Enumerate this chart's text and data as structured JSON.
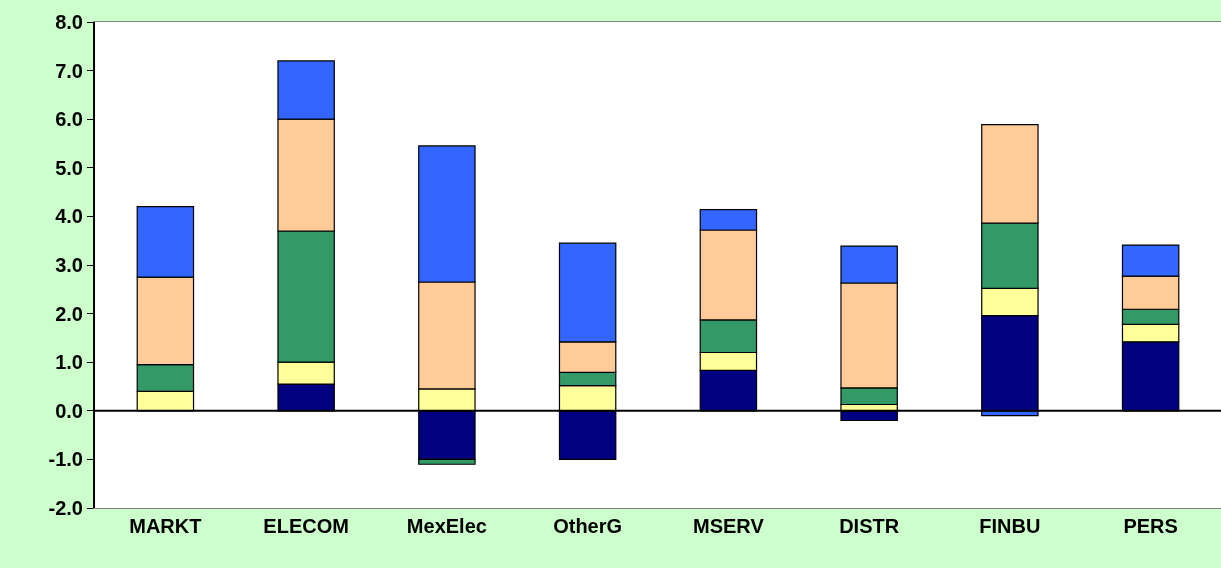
{
  "chart_data": {
    "type": "bar",
    "stacked": true,
    "categories": [
      "MARKT",
      "ELECOM",
      "MexElec",
      "OtherG",
      "MSERV",
      "DISTR",
      "FINBU",
      "PERS"
    ],
    "series": [
      {
        "color": "#000080",
        "values": [
          null,
          0.55,
          -1.0,
          -1.0,
          0.83,
          -0.2,
          1.96,
          1.42
        ]
      },
      {
        "color": "#ffff99",
        "values": [
          0.4,
          0.45,
          0.45,
          0.52,
          0.37,
          0.13,
          0.56,
          0.36
        ]
      },
      {
        "color": "#339966",
        "values": [
          0.55,
          2.7,
          -0.1,
          0.27,
          0.67,
          0.34,
          1.34,
          0.31
        ]
      },
      {
        "color": "#ffcc99",
        "values": [
          1.8,
          2.3,
          2.2,
          0.63,
          1.85,
          2.16,
          2.03,
          0.68
        ]
      },
      {
        "color": "#3366ff",
        "values": [
          1.45,
          1.2,
          2.8,
          2.03,
          0.42,
          0.76,
          -0.1,
          0.64
        ]
      }
    ],
    "ylim": [
      -2,
      8
    ],
    "yticks": [
      {
        "value": -2,
        "label": "-2.0"
      },
      {
        "value": -1,
        "label": "-1.0"
      },
      {
        "value": 0,
        "label": "0.0"
      },
      {
        "value": 1,
        "label": "1.0"
      },
      {
        "value": 2,
        "label": "2.0"
      },
      {
        "value": 3,
        "label": "3.0"
      },
      {
        "value": 4,
        "label": "4.0"
      },
      {
        "value": 5,
        "label": "5.0"
      },
      {
        "value": 6,
        "label": "6.0"
      },
      {
        "value": 7,
        "label": "7.0"
      },
      {
        "value": 8,
        "label": "8.0"
      }
    ],
    "orientation": "vertical"
  }
}
